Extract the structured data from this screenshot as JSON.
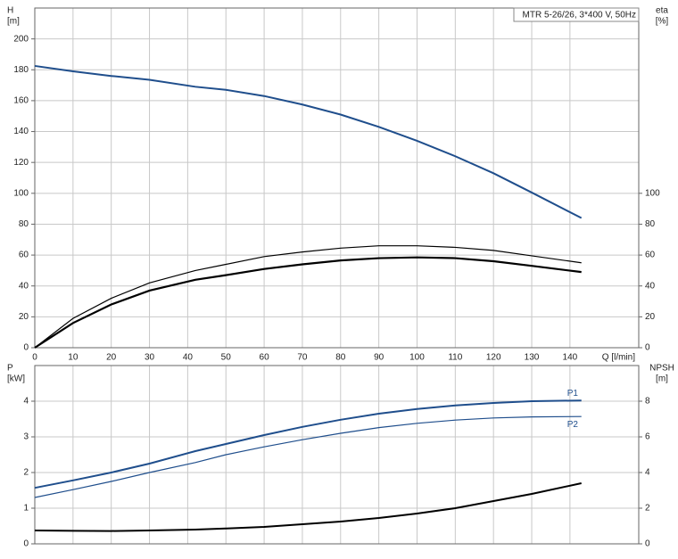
{
  "chart_data": [
    {
      "type": "line",
      "legend_text": "MTR 5-26/26, 3*400 V, 50Hz",
      "ylabel": [
        "H",
        "[m]"
      ],
      "y2label": [
        "eta",
        "[%]"
      ],
      "xlabel": "Q [l/min]",
      "x": [
        0,
        10,
        20,
        30,
        42,
        50,
        60,
        70,
        80,
        90,
        100,
        110,
        120,
        130,
        143
      ],
      "xlim": [
        0,
        158
      ],
      "xticks": [
        0,
        10,
        20,
        30,
        40,
        50,
        60,
        70,
        80,
        90,
        100,
        110,
        120,
        130,
        140
      ],
      "ylim": [
        0,
        220
      ],
      "yticks": [
        0,
        20,
        40,
        60,
        80,
        100,
        120,
        140,
        160,
        180,
        200
      ],
      "y2lim": [
        0,
        220
      ],
      "y2ticks": [
        0,
        20,
        40,
        60,
        80,
        100
      ],
      "grid": true,
      "series": [
        {
          "color": "#1f4e8c",
          "line_width": 2,
          "values": [
            182.5,
            179,
            176,
            173.5,
            169,
            167,
            163,
            157.5,
            151,
            143,
            134,
            124,
            113,
            100.5,
            84
          ]
        },
        {
          "color": "#000000",
          "line_width": 1.2,
          "axis": "y2",
          "values": [
            0,
            19,
            32,
            42,
            50,
            54,
            59,
            62,
            64.5,
            66,
            66,
            65,
            63,
            59.5,
            55
          ]
        },
        {
          "color": "#000000",
          "line_width": 2.2,
          "axis": "y2",
          "values": [
            0,
            16,
            28,
            37,
            44,
            47,
            51,
            54,
            56.5,
            58,
            58.5,
            58,
            56,
            53,
            49
          ]
        }
      ]
    },
    {
      "type": "line",
      "ylabel": [
        "P",
        "[kW]"
      ],
      "y2label": [
        "NPSH",
        "[m]"
      ],
      "x": [
        0,
        10,
        20,
        30,
        42,
        50,
        60,
        70,
        80,
        90,
        100,
        110,
        120,
        130,
        143
      ],
      "xlim": [
        0,
        158
      ],
      "xticks": [
        0,
        10,
        20,
        30,
        40,
        50,
        60,
        70,
        80,
        90,
        100,
        110,
        120,
        130,
        140
      ],
      "ylim": [
        0,
        5
      ],
      "yticks": [
        0,
        1,
        2,
        3,
        4
      ],
      "y2lim": [
        0,
        10
      ],
      "y2ticks": [
        0,
        2,
        4,
        6,
        8
      ],
      "grid": true,
      "series": [
        {
          "name": "P1",
          "color": "#1f4e8c",
          "line_width": 2,
          "values": [
            1.57,
            1.78,
            2.0,
            2.25,
            2.6,
            2.8,
            3.05,
            3.28,
            3.48,
            3.65,
            3.78,
            3.88,
            3.95,
            4.0,
            4.02
          ]
        },
        {
          "name": "P2",
          "color": "#1f4e8c",
          "line_width": 1.2,
          "values": [
            1.3,
            1.52,
            1.75,
            2.0,
            2.28,
            2.5,
            2.72,
            2.92,
            3.1,
            3.26,
            3.38,
            3.47,
            3.53,
            3.56,
            3.57
          ]
        },
        {
          "color": "#000000",
          "line_width": 2,
          "axis": "y2",
          "values": [
            0.75,
            0.73,
            0.72,
            0.75,
            0.8,
            0.86,
            0.95,
            1.1,
            1.25,
            1.45,
            1.7,
            2.0,
            2.4,
            2.8,
            3.4
          ]
        }
      ]
    }
  ]
}
